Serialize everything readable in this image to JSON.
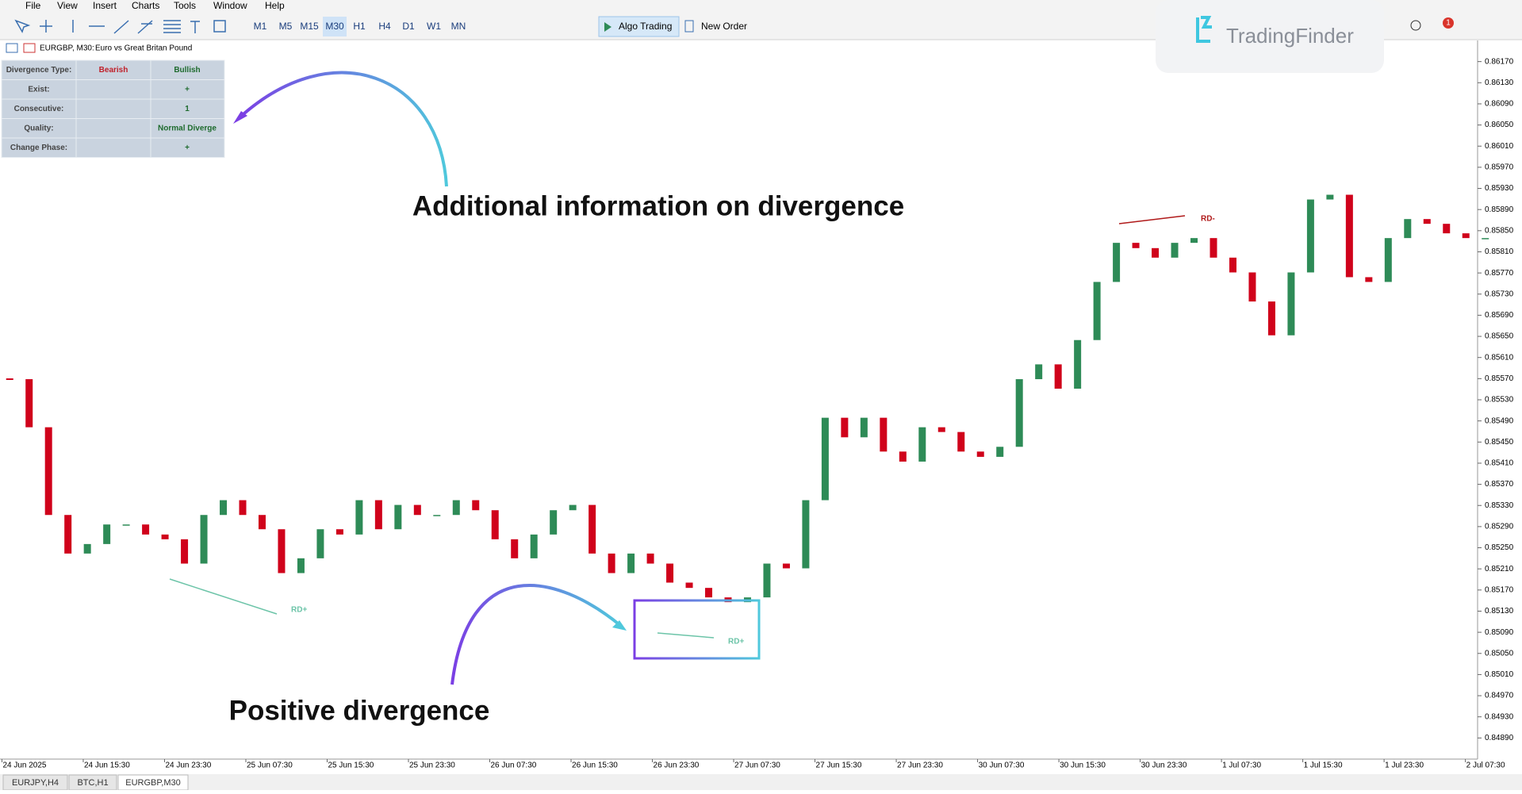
{
  "menu": [
    "File",
    "View",
    "Insert",
    "Charts",
    "Tools",
    "Window",
    "Help"
  ],
  "toolbar": {
    "timeframes": [
      "M1",
      "M5",
      "M15",
      "M30",
      "H1",
      "H4",
      "D1",
      "W1",
      "MN"
    ],
    "active_timeframe": "M30",
    "algo_trading": "Algo Trading",
    "new_order": "New Order"
  },
  "logo": "TradingFinder",
  "notification_count": 1,
  "chart_header": {
    "symbol": "EURGBP, M30:",
    "description": "Euro vs Great Britan Pound"
  },
  "info_table": {
    "rows": [
      {
        "label": "Divergence Type:",
        "bearish": "Bearish",
        "bullish": "Bullish"
      },
      {
        "label": "Exist:",
        "bullish": "+"
      },
      {
        "label": "Consecutive:",
        "bullish": "1"
      },
      {
        "label": "Quality:",
        "bullish": "Normal Diverge"
      },
      {
        "label": "Change Phase:",
        "bullish": "+"
      }
    ]
  },
  "callouts": [
    "Additional information on divergence",
    "Positive divergence"
  ],
  "chart_data": {
    "type": "candlestick",
    "up_color": "#2e8b57",
    "down_color": "#d0021b",
    "x_labels": [
      "24 Jun 2025",
      "24 Jun 15:30",
      "24 Jun 23:30",
      "25 Jun 07:30",
      "25 Jun 15:30",
      "25 Jun 23:30",
      "26 Jun 07:30",
      "26 Jun 15:30",
      "26 Jun 23:30",
      "27 Jun 07:30",
      "27 Jun 15:30",
      "27 Jun 23:30",
      "30 Jun 07:30",
      "30 Jun 15:30",
      "30 Jun 23:30",
      "1 Jul 07:30",
      "1 Jul 15:30",
      "1 Jul 23:30",
      "2 Jul 07:30"
    ],
    "closes": [
      0.85569,
      0.85478,
      0.85312,
      0.85239,
      0.85257,
      0.85294,
      0.85294,
      0.85275,
      0.85266,
      0.8522,
      0.85312,
      0.8534,
      0.85312,
      0.85285,
      0.85202,
      0.8523,
      0.85285,
      0.85275,
      0.8534,
      0.85285,
      0.85331,
      0.85312,
      0.85312,
      0.8534,
      0.85321,
      0.85266,
      0.8523,
      0.85275,
      0.85321,
      0.85331,
      0.85239,
      0.85202,
      0.85239,
      0.8522,
      0.85184,
      0.85174,
      0.85156,
      0.85147,
      0.85156,
      0.8522,
      0.85211,
      0.8534,
      0.85496,
      0.85459,
      0.85496,
      0.85432,
      0.85413,
      0.85478,
      0.85469,
      0.85432,
      0.85422,
      0.85441,
      0.85569,
      0.85597,
      0.85551,
      0.85643,
      0.85753,
      0.85827,
      0.85817,
      0.85799,
      0.85827,
      0.85836,
      0.85799,
      0.85771,
      0.85716,
      0.85652,
      0.85771,
      0.85909,
      0.85918,
      0.85762,
      0.85753,
      0.85836,
      0.85872,
      0.85863,
      0.85845,
      0.85836,
      0.85836
    ],
    "ylim": [
      0.8485,
      0.8621
    ],
    "yticks": [
      {
        "value": 0.8617,
        "label": "0.86170"
      },
      {
        "value": 0.8613,
        "label": "0.86130"
      },
      {
        "value": 0.8609,
        "label": "0.86090"
      },
      {
        "value": 0.8605,
        "label": "0.86050"
      },
      {
        "value": 0.8601,
        "label": "0.86010"
      },
      {
        "value": 0.8597,
        "label": "0.85970"
      },
      {
        "value": 0.8593,
        "label": "0.85930"
      },
      {
        "value": 0.8589,
        "label": "0.85890"
      },
      {
        "value": 0.8585,
        "label": "0.85850"
      },
      {
        "value": 0.8581,
        "label": "0.85810"
      },
      {
        "value": 0.8577,
        "label": "0.85770"
      },
      {
        "value": 0.8573,
        "label": "0.85730"
      },
      {
        "value": 0.8569,
        "label": "0.85690"
      },
      {
        "value": 0.8565,
        "label": "0.85650"
      },
      {
        "value": 0.8561,
        "label": "0.85610"
      },
      {
        "value": 0.8557,
        "label": "0.85570"
      },
      {
        "value": 0.8553,
        "label": "0.85530"
      },
      {
        "value": 0.8549,
        "label": "0.85490"
      },
      {
        "value": 0.8545,
        "label": "0.85450"
      },
      {
        "value": 0.8541,
        "label": "0.85410"
      },
      {
        "value": 0.8537,
        "label": "0.85370"
      },
      {
        "value": 0.8533,
        "label": "0.85330"
      },
      {
        "value": 0.8529,
        "label": "0.85290"
      },
      {
        "value": 0.8525,
        "label": "0.85250"
      },
      {
        "value": 0.8521,
        "label": "0.85210"
      },
      {
        "value": 0.8517,
        "label": "0.85170"
      },
      {
        "value": 0.8513,
        "label": "0.85130"
      },
      {
        "value": 0.8509,
        "label": "0.85090"
      },
      {
        "value": 0.8505,
        "label": "0.85050"
      },
      {
        "value": 0.8501,
        "label": "0.85010"
      },
      {
        "value": 0.8497,
        "label": "0.84970"
      },
      {
        "value": 0.8493,
        "label": "0.84930"
      },
      {
        "value": 0.8489,
        "label": "0.84890"
      }
    ],
    "annotations": [
      "RD+",
      "RD+",
      "RD-"
    ]
  },
  "tabs": [
    "EURJPY,H4",
    "BTC,H1",
    "EURGBP,M30"
  ],
  "active_tab": "EURGBP,M30"
}
